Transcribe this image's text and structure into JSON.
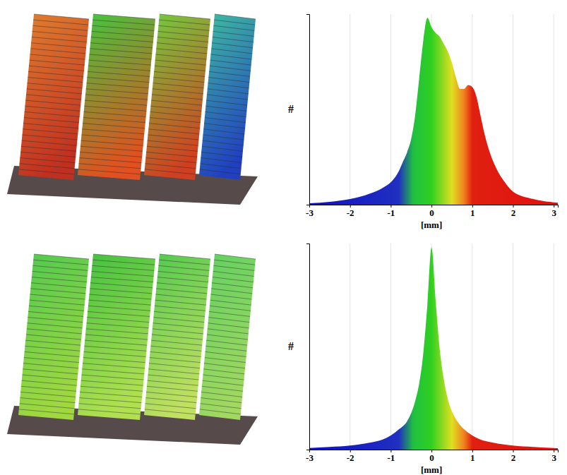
{
  "chart_data": [
    {
      "type": "area",
      "x": [
        -3,
        -2.5,
        -2,
        -1.5,
        -1.2,
        -1,
        -0.8,
        -0.7,
        -0.6,
        -0.5,
        -0.4,
        -0.3,
        -0.2,
        -0.1,
        0,
        0.1,
        0.2,
        0.3,
        0.4,
        0.5,
        0.6,
        0.7,
        0.8,
        0.9,
        1,
        1.1,
        1.2,
        1.3,
        1.4,
        1.6,
        1.8,
        2,
        2.5,
        3,
        3.1
      ],
      "values": [
        0.8,
        1.5,
        3,
        6,
        9,
        12,
        18,
        23,
        28,
        35,
        48,
        68,
        88,
        100,
        95,
        92,
        90,
        86,
        82,
        76,
        68,
        62,
        62,
        64,
        63,
        58,
        48,
        38,
        30,
        19,
        12,
        7,
        3,
        1.2,
        1
      ],
      "xlim": [
        -3,
        3.1
      ],
      "xticks": [
        -3,
        -2,
        -1,
        0,
        1,
        2,
        3
      ],
      "ylim": [
        0,
        102
      ],
      "xlabel": "[mm]",
      "ylabel": "#",
      "tick_labels": "x",
      "grid": true
    },
    {
      "type": "area",
      "x": [
        -3,
        -2.5,
        -2,
        -1.5,
        -1.2,
        -1,
        -0.8,
        -0.6,
        -0.5,
        -0.4,
        -0.3,
        -0.2,
        -0.1,
        0,
        0.1,
        0.2,
        0.3,
        0.4,
        0.5,
        0.6,
        0.8,
        1,
        1.2,
        1.5,
        2,
        2.5,
        3,
        3.1
      ],
      "values": [
        0.8,
        1.3,
        2,
        3.5,
        5,
        7,
        10,
        14,
        18,
        24,
        33,
        48,
        72,
        100,
        74,
        50,
        35,
        25,
        19,
        15,
        10,
        7,
        5,
        3.5,
        2,
        1.3,
        0.8,
        0.7
      ],
      "xlim": [
        -3,
        3.1
      ],
      "xticks": [
        -3,
        -2,
        -1,
        0,
        1,
        2,
        3
      ],
      "ylim": [
        0,
        102
      ],
      "xlabel": "[mm]",
      "ylabel": "#",
      "tick_labels": "x",
      "grid": true
    }
  ]
}
